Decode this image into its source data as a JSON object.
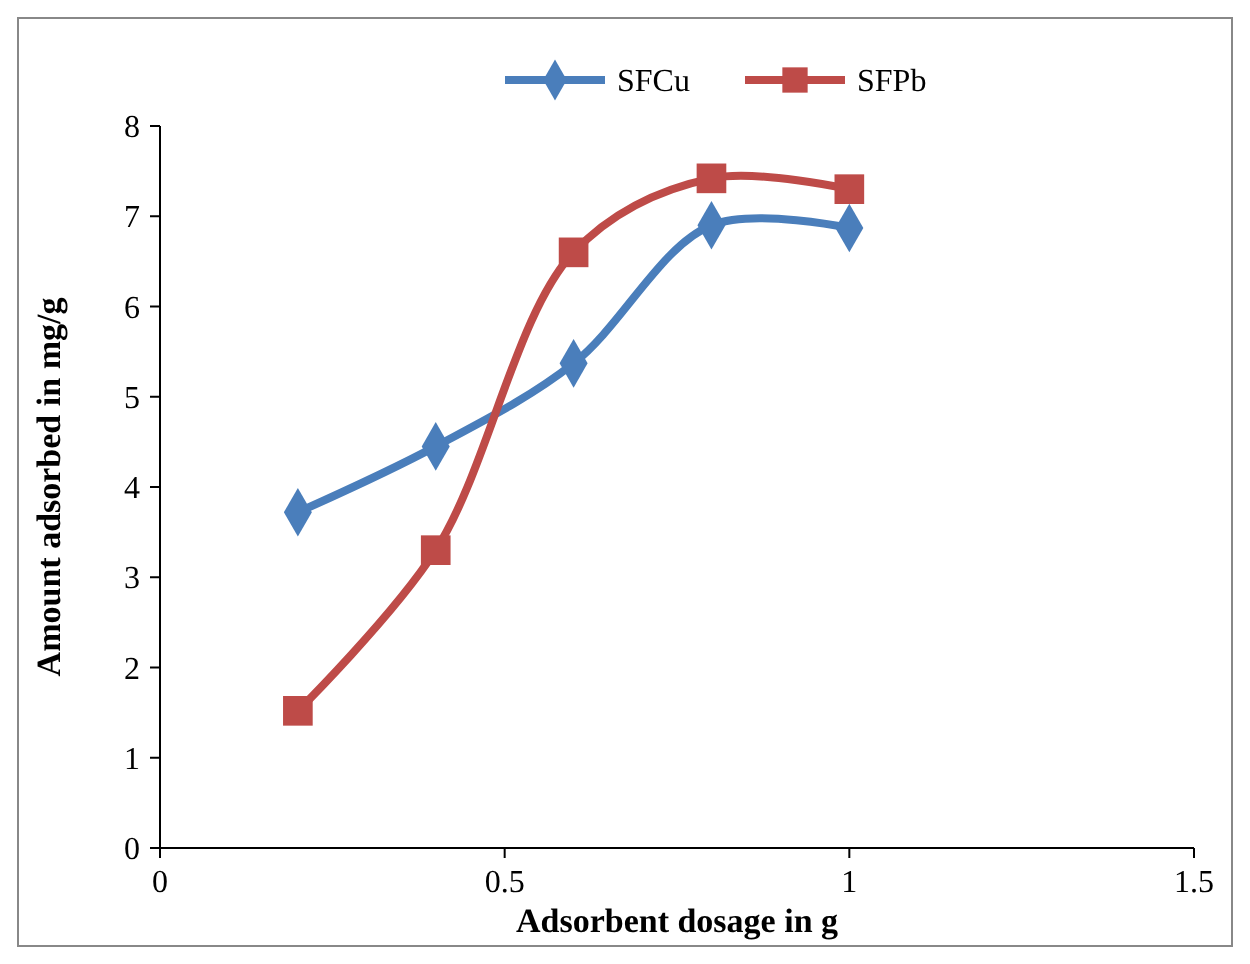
{
  "chart_data": {
    "type": "line",
    "xlabel": "Adsorbent dosage in g",
    "ylabel": "Amount adsorbed in mg/g",
    "x": [
      0.2,
      0.4,
      0.6,
      0.8,
      1
    ],
    "xlim": [
      0,
      1.5
    ],
    "xticks": [
      0,
      0.5,
      1,
      1.5
    ],
    "ylim": [
      0,
      8
    ],
    "yticks": [
      0,
      1,
      2,
      3,
      4,
      5,
      6,
      7,
      8
    ],
    "grid": false,
    "legend": "top",
    "series": [
      {
        "name": "SFCu",
        "color": "#4a7ebb",
        "marker": "diamond",
        "values": [
          3.72,
          4.45,
          5.37,
          6.9,
          6.87
        ]
      },
      {
        "name": "SFPb",
        "color": "#be4b48",
        "marker": "square",
        "values": [
          1.52,
          3.3,
          6.6,
          7.42,
          7.3
        ]
      }
    ]
  }
}
